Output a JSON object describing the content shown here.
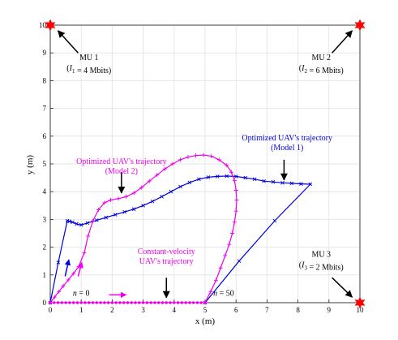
{
  "chart_data": {
    "type": "line",
    "xlabel": "x (m)",
    "ylabel": "y (m)",
    "xlim": [
      0,
      10
    ],
    "ylim": [
      0,
      10
    ],
    "xticks": [
      0,
      1,
      2,
      3,
      4,
      5,
      6,
      7,
      8,
      9,
      10
    ],
    "yticks": [
      0,
      1,
      2,
      3,
      4,
      5,
      6,
      7,
      8,
      9,
      10
    ],
    "grid": true,
    "colors": {
      "model1": "#0000dd",
      "model2": "#ee00ee",
      "mu": "#ff0000",
      "axis": "#262626"
    },
    "mus": [
      {
        "x": 0,
        "y": 10,
        "lines": [
          "MU 1",
          "(I_1 = 4 Mbits)"
        ]
      },
      {
        "x": 10,
        "y": 10,
        "lines": [
          "MU 2",
          "(I_2 = 6 Mbits)"
        ]
      },
      {
        "x": 10,
        "y": 0,
        "lines": [
          "MU 3",
          "(I_3 = 2 Mbits)"
        ]
      }
    ],
    "series": [
      {
        "marker": "x",
        "x": [
          0,
          0.26,
          0.55,
          0.62,
          0.72,
          0.85,
          1.0,
          1.2,
          1.5,
          1.8,
          2.1,
          2.4,
          2.7,
          3.0,
          3.3,
          3.6,
          3.9,
          4.2,
          4.5,
          4.8,
          5.1,
          5.4,
          5.7,
          6.0,
          6.3,
          6.6,
          6.9,
          7.2,
          7.5,
          7.8,
          8.1,
          8.4,
          7.25,
          6.1,
          5.0
        ],
        "y": [
          0,
          1.45,
          2.95,
          2.93,
          2.9,
          2.84,
          2.8,
          2.87,
          2.97,
          3.07,
          3.17,
          3.27,
          3.37,
          3.5,
          3.65,
          3.82,
          4.0,
          4.18,
          4.33,
          4.45,
          4.52,
          4.55,
          4.56,
          4.55,
          4.5,
          4.45,
          4.38,
          4.35,
          4.32,
          4.3,
          4.28,
          4.27,
          2.95,
          1.5,
          0
        ]
      },
      {
        "marker": "+",
        "x": [
          0,
          0.14,
          0.28,
          0.42,
          0.58,
          0.75,
          0.92,
          1.1,
          1.22,
          1.38,
          1.56,
          1.75,
          1.95,
          2.2,
          2.45,
          2.7,
          2.95,
          3.2,
          3.45,
          3.7,
          3.95,
          4.2,
          4.45,
          4.7,
          4.95,
          5.2,
          5.45,
          5.7,
          5.85,
          5.95,
          6.0,
          6.02,
          6.0,
          5.95,
          5.88,
          5.78,
          5.65,
          5.5,
          5.35,
          5.18,
          5.0
        ],
        "y": [
          0,
          0.2,
          0.4,
          0.6,
          0.82,
          1.05,
          1.3,
          1.8,
          2.4,
          2.95,
          3.35,
          3.6,
          3.7,
          3.75,
          3.82,
          3.95,
          4.15,
          4.38,
          4.6,
          4.82,
          5.0,
          5.15,
          5.25,
          5.3,
          5.32,
          5.28,
          5.15,
          4.95,
          4.7,
          4.4,
          4.05,
          3.7,
          3.3,
          2.9,
          2.5,
          2.1,
          1.7,
          1.25,
          0.8,
          0.4,
          0
        ]
      },
      {
        "marker": "dot",
        "x": [
          0,
          0.125,
          0.25,
          0.375,
          0.5,
          0.625,
          0.75,
          0.875,
          1.0,
          1.125,
          1.25,
          1.375,
          1.5,
          1.625,
          1.75,
          1.875,
          2.0,
          2.125,
          2.25,
          2.375,
          2.5,
          2.625,
          2.75,
          2.875,
          3.0,
          3.125,
          3.25,
          3.375,
          3.5,
          3.625,
          3.75,
          3.875,
          4.0,
          4.125,
          4.25,
          4.375,
          4.5,
          4.625,
          4.75,
          4.875,
          5.0
        ],
        "y": [
          0,
          0,
          0,
          0,
          0,
          0,
          0,
          0,
          0,
          0,
          0,
          0,
          0,
          0,
          0,
          0,
          0,
          0,
          0,
          0,
          0,
          0,
          0,
          0,
          0,
          0,
          0,
          0,
          0,
          0,
          0,
          0,
          0,
          0,
          0,
          0,
          0,
          0,
          0,
          0,
          0
        ]
      }
    ],
    "annotations": [
      {
        "lines": [
          "Optimized UAV's trajectory",
          "(Model 1)"
        ],
        "color": "#0000dd",
        "x": 7.65,
        "y": 5.85
      },
      {
        "lines": [
          "Optimized UAV's trajectory",
          "(Model 2)"
        ],
        "color": "#ee00ee",
        "x": 2.3,
        "y": 5.0
      },
      {
        "lines": [
          "Constant-velocity",
          "UAV's trajectory"
        ],
        "color": "#ee00ee",
        "x": 3.75,
        "y": 1.75
      },
      {
        "lines": [
          "n = 0"
        ],
        "color": "#000000",
        "x": 1.0,
        "y": 0.25
      },
      {
        "lines": [
          "n = 50"
        ],
        "color": "#000000",
        "x": 5.6,
        "y": 0.25
      }
    ]
  }
}
